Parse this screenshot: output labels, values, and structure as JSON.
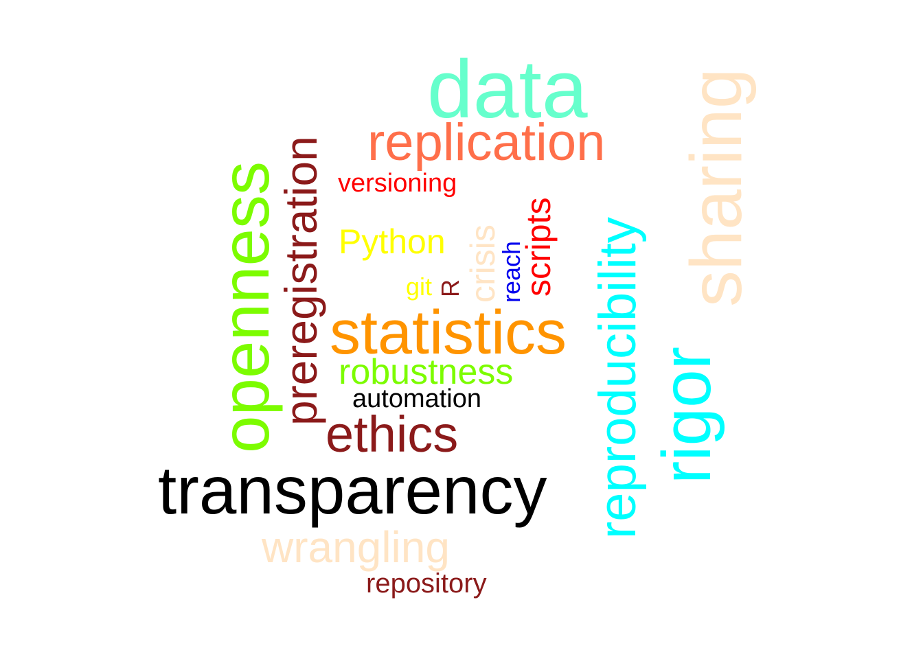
{
  "words": {
    "data": {
      "text": "data",
      "color": "#66FFCC"
    },
    "replication": {
      "text": "replication",
      "color": "#FF6F4A"
    },
    "versioning": {
      "text": "versioning",
      "color": "#FF0000"
    },
    "python": {
      "text": "Python",
      "color": "#FFFF00"
    },
    "git": {
      "text": "git",
      "color": "#FFFF00"
    },
    "r": {
      "text": "R",
      "color": "#8B1A1A"
    },
    "crisis": {
      "text": "crisis",
      "color": "#FFE4C4"
    },
    "reach": {
      "text": "reach",
      "color": "#0000EE"
    },
    "scripts": {
      "text": "scripts",
      "color": "#FF0000"
    },
    "statistics": {
      "text": "statistics",
      "color": "#FF9400"
    },
    "robustness": {
      "text": "robustness",
      "color": "#7CFC00"
    },
    "automation": {
      "text": "automation",
      "color": "#000000"
    },
    "ethics": {
      "text": "ethics",
      "color": "#8B1A1A"
    },
    "transparency": {
      "text": "transparency",
      "color": "#000000"
    },
    "wrangling": {
      "text": "wrangling",
      "color": "#FFE4C4"
    },
    "repository": {
      "text": "repository",
      "color": "#8B1A1A"
    },
    "openness": {
      "text": "openness",
      "color": "#7CFC00"
    },
    "preregistration": {
      "text": "preregistration",
      "color": "#8B1A1A"
    },
    "reproducibility": {
      "text": "reproducibility",
      "color": "#00FFFF"
    },
    "rigor": {
      "text": "rigor",
      "color": "#00FFFF"
    },
    "sharing": {
      "text": "sharing",
      "color": "#FFE4C4"
    }
  }
}
